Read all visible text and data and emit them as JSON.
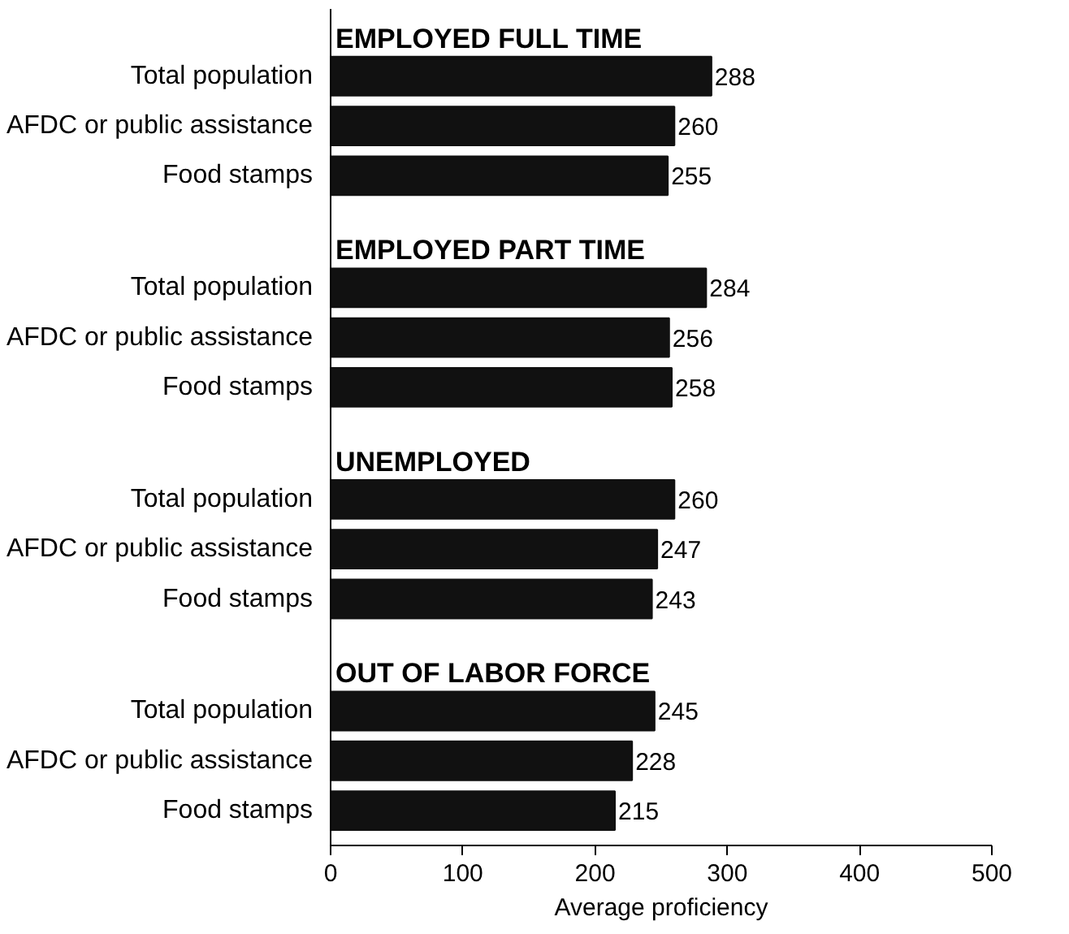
{
  "chart_data": {
    "type": "bar",
    "orientation": "horizontal",
    "xlabel": "Average proficiency",
    "categories": [
      "Total population",
      "AFDC or public assistance",
      "Food stamps",
      "Total population",
      "AFDC or public assistance",
      "Food stamps",
      "Total population",
      "AFDC or public assistance",
      "Food stamps",
      "Total population",
      "AFDC or public assistance",
      "Food stamps"
    ],
    "values": [
      288,
      260,
      255,
      284,
      256,
      258,
      260,
      247,
      243,
      245,
      228,
      215
    ],
    "color": "#111111",
    "annotations": [
      "EMPLOYED FULL TIME",
      "EMPLOYED PART TIME",
      "UNEMPLOYED",
      "OUT OF LABOR FORCE"
    ],
    "xlim": [
      0,
      500
    ],
    "xticks": [
      0,
      100,
      200,
      300,
      400,
      500
    ],
    "data_labels": true,
    "grid": false
  }
}
